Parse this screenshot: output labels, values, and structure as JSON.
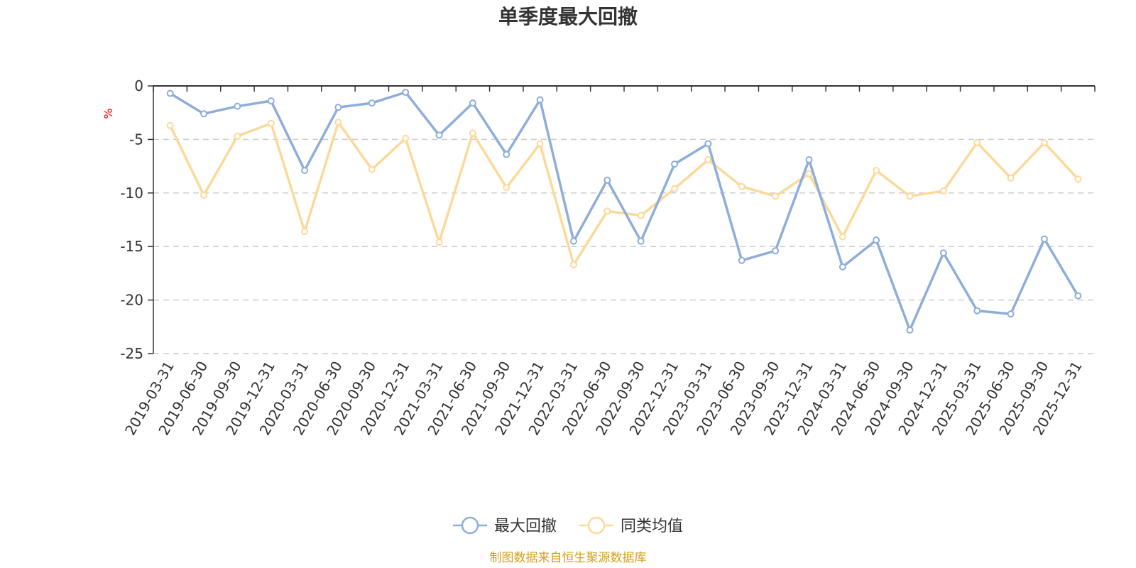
{
  "chart_data": {
    "type": "line",
    "title": "单季度最大回撤",
    "ylabel": "%",
    "xlabel": "",
    "ylim": [
      -25,
      0
    ],
    "yticks": [
      0,
      -5,
      -10,
      -15,
      -20,
      -25
    ],
    "grid": true,
    "legend_position": "bottom-center",
    "categories": [
      "2019-03-31",
      "2019-06-30",
      "2019-09-30",
      "2019-12-31",
      "2020-03-31",
      "2020-06-30",
      "2020-09-30",
      "2020-12-31",
      "2021-03-31",
      "2021-06-30",
      "2021-09-30",
      "2021-12-31",
      "2022-03-31",
      "2022-06-30",
      "2022-09-30",
      "2022-12-31",
      "2023-03-31",
      "2023-06-30",
      "2023-09-30",
      "2023-12-31",
      "2024-03-31",
      "2024-06-30",
      "2024-09-30",
      "2024-12-31",
      "2025-03-31",
      "2025-06-30",
      "2025-09-30",
      "2025-12-31"
    ],
    "series": [
      {
        "name": "最大回撤",
        "color": "#8eadd9",
        "values": [
          -0.7,
          -2.6,
          -1.9,
          -1.4,
          -7.9,
          -2.0,
          -1.6,
          -0.6,
          -4.6,
          -1.6,
          -6.4,
          -1.3,
          -14.5,
          -8.8,
          -14.5,
          -7.3,
          -5.4,
          -16.3,
          -15.4,
          -6.9,
          -16.9,
          -14.4,
          -22.8,
          -15.6,
          -21.0,
          -21.3,
          -14.3,
          -19.6
        ]
      },
      {
        "name": "同类均值",
        "color": "#fcd99a",
        "values": [
          -3.7,
          -10.2,
          -4.7,
          -3.5,
          -13.6,
          -3.4,
          -7.8,
          -4.9,
          -14.6,
          -4.4,
          -9.5,
          -5.4,
          -16.7,
          -11.7,
          -12.1,
          -9.6,
          -6.9,
          -9.4,
          -10.3,
          -8.2,
          -14.1,
          -7.9,
          -10.3,
          -9.8,
          -5.3,
          -8.6,
          -5.3,
          -8.7
        ]
      }
    ],
    "source": "制图数据来自恒生聚源数据库",
    "source_color": "#d4a017",
    "ylabel_color": "#ff0000"
  }
}
